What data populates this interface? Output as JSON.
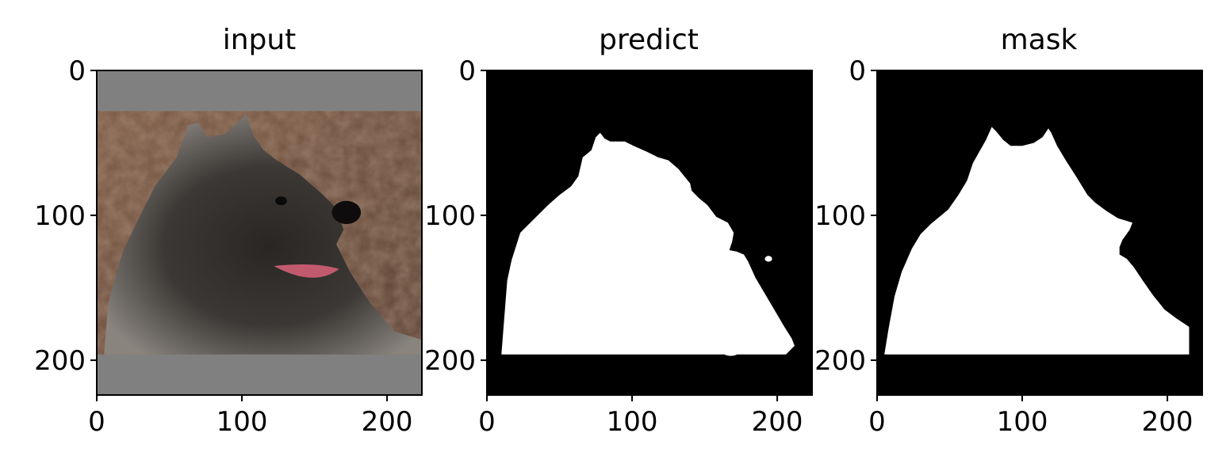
{
  "chart_data": [
    {
      "type": "image",
      "title": "input",
      "xlim": [
        0,
        224
      ],
      "ylim": [
        224,
        0
      ],
      "xticks": [
        0,
        100,
        200
      ],
      "yticks": [
        0,
        100,
        200
      ],
      "image_content": "photo of a dog",
      "padding_color": "#808080",
      "content_rows": [
        28,
        196
      ]
    },
    {
      "type": "image",
      "title": "predict",
      "xlim": [
        0,
        224
      ],
      "ylim": [
        224,
        0
      ],
      "xticks": [
        0,
        100,
        200
      ],
      "yticks": [
        0,
        100,
        200
      ],
      "image_content": "binary segmentation mask",
      "foreground_color": "#ffffff",
      "background_color": "#000000",
      "main_outline": [
        [
          10,
          196
        ],
        [
          12,
          170
        ],
        [
          14,
          145
        ],
        [
          17,
          131
        ],
        [
          23,
          112
        ],
        [
          28,
          107
        ],
        [
          34,
          101
        ],
        [
          42,
          93
        ],
        [
          50,
          86
        ],
        [
          58,
          80
        ],
        [
          63,
          73
        ],
        [
          66,
          60
        ],
        [
          72,
          55
        ],
        [
          75,
          46
        ],
        [
          78,
          43
        ],
        [
          81,
          47
        ],
        [
          85,
          49
        ],
        [
          95,
          49
        ],
        [
          101,
          52
        ],
        [
          110,
          56
        ],
        [
          118,
          60
        ],
        [
          125,
          62
        ],
        [
          132,
          68
        ],
        [
          136,
          73
        ],
        [
          140,
          78
        ],
        [
          141,
          83
        ],
        [
          146,
          88
        ],
        [
          152,
          93
        ],
        [
          158,
          101
        ],
        [
          166,
          105
        ],
        [
          170,
          112
        ],
        [
          169,
          118
        ],
        [
          167,
          124
        ],
        [
          172,
          125
        ],
        [
          177,
          127
        ],
        [
          180,
          132
        ],
        [
          185,
          143
        ],
        [
          195,
          160
        ],
        [
          205,
          177
        ],
        [
          210,
          185
        ],
        [
          212,
          190
        ],
        [
          208,
          194
        ],
        [
          206,
          196
        ]
      ],
      "blobs": [
        {
          "cx": 51,
          "cy": 189,
          "rx": 5,
          "ry": 7
        },
        {
          "cx": 168,
          "cy": 195,
          "rx": 5,
          "ry": 2
        },
        {
          "cx": 194,
          "cy": 130,
          "rx": 2.5,
          "ry": 2
        }
      ]
    },
    {
      "type": "image",
      "title": "mask",
      "xlim": [
        0,
        224
      ],
      "ylim": [
        224,
        0
      ],
      "xticks": [
        0,
        100,
        200
      ],
      "yticks": [
        0,
        100,
        200
      ],
      "image_content": "ground-truth segmentation mask",
      "foreground_color": "#ffffff",
      "background_color": "#000000",
      "main_outline": [
        [
          5,
          196
        ],
        [
          8,
          178
        ],
        [
          12,
          156
        ],
        [
          17,
          139
        ],
        [
          24,
          123
        ],
        [
          30,
          113
        ],
        [
          37,
          106
        ],
        [
          43,
          101
        ],
        [
          49,
          96
        ],
        [
          56,
          86
        ],
        [
          62,
          76
        ],
        [
          66,
          64
        ],
        [
          71,
          55
        ],
        [
          75,
          48
        ],
        [
          79,
          39
        ],
        [
          82,
          42
        ],
        [
          87,
          48
        ],
        [
          92,
          52
        ],
        [
          100,
          52
        ],
        [
          108,
          50
        ],
        [
          114,
          46
        ],
        [
          118,
          40
        ],
        [
          120,
          43
        ],
        [
          124,
          52
        ],
        [
          130,
          62
        ],
        [
          137,
          73
        ],
        [
          145,
          86
        ],
        [
          150,
          91
        ],
        [
          158,
          97
        ],
        [
          166,
          102
        ],
        [
          176,
          105
        ],
        [
          174,
          110
        ],
        [
          169,
          117
        ],
        [
          167,
          122
        ],
        [
          167,
          127
        ],
        [
          172,
          130
        ],
        [
          177,
          136
        ],
        [
          183,
          145
        ],
        [
          190,
          155
        ],
        [
          198,
          165
        ],
        [
          206,
          171
        ],
        [
          212,
          175
        ],
        [
          215,
          177
        ],
        [
          215,
          196
        ]
      ],
      "blobs": []
    }
  ]
}
